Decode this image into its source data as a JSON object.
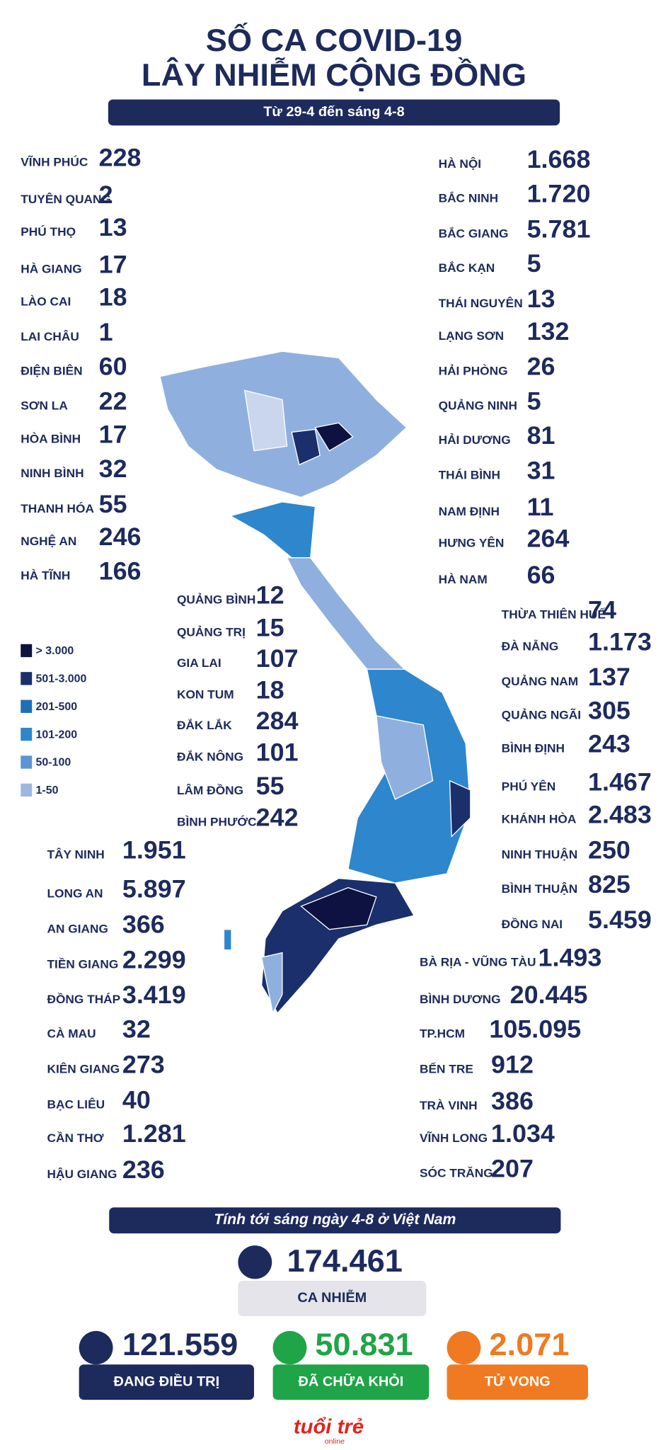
{
  "header": {
    "title_lines": [
      "SỐ CA COVID-19",
      "LÂY NHIỄM CỘNG ĐỒNG"
    ],
    "subtitle": "Từ 29-4 đến sáng 4-8"
  },
  "groups": [
    {
      "items": [
        {
          "name": "VĨNH PHÚC",
          "value": "228"
        },
        {
          "name": "TUYÊN QUANG",
          "value": "2"
        },
        {
          "name": "PHÚ THỌ",
          "value": "13"
        },
        {
          "name": "HÀ GIANG",
          "value": "17"
        },
        {
          "name": "LÀO CAI",
          "value": "18"
        },
        {
          "name": "LAI CHÂU",
          "value": "1"
        },
        {
          "name": "ĐIỆN BIÊN",
          "value": "60"
        },
        {
          "name": "SƠN LA",
          "value": "22"
        },
        {
          "name": "HÒA BÌNH",
          "value": "17"
        },
        {
          "name": "NINH BÌNH",
          "value": "32"
        },
        {
          "name": "THANH HÓA",
          "value": "55"
        },
        {
          "name": "NGHỆ AN",
          "value": "246"
        },
        {
          "name": "HÀ TĨNH",
          "value": "166"
        }
      ]
    },
    {
      "items": [
        {
          "name": "HÀ NỘI",
          "value": "1.668"
        },
        {
          "name": "BẮC NINH",
          "value": "1.720"
        },
        {
          "name": "BẮC GIANG",
          "value": "5.781"
        },
        {
          "name": "BẮC KẠN",
          "value": "5"
        },
        {
          "name": "THÁI NGUYÊN",
          "value": "13"
        },
        {
          "name": "LẠNG SƠN",
          "value": "132"
        },
        {
          "name": "HẢI PHÒNG",
          "value": "26"
        },
        {
          "name": "QUẢNG NINH",
          "value": "5"
        },
        {
          "name": "HẢI DƯƠNG",
          "value": "81"
        },
        {
          "name": "THÁI BÌNH",
          "value": "31"
        },
        {
          "name": "NAM ĐỊNH",
          "value": "11"
        },
        {
          "name": "HƯNG YÊN",
          "value": "264"
        },
        {
          "name": "HÀ NAM",
          "value": "66"
        }
      ]
    },
    {
      "items": [
        {
          "name": "QUẢNG BÌNH",
          "value": "12"
        },
        {
          "name": "QUẢNG TRỊ",
          "value": "15"
        },
        {
          "name": "GIA LAI",
          "value": "107"
        },
        {
          "name": "KON TUM",
          "value": "18"
        },
        {
          "name": "ĐẮK LẮK",
          "value": "284"
        },
        {
          "name": "ĐẮK NÔNG",
          "value": "101"
        },
        {
          "name": "LÂM ĐỒNG",
          "value": "55"
        },
        {
          "name": "BÌNH PHƯỚC",
          "value": "242"
        }
      ]
    },
    {
      "items": [
        {
          "name": "THỪA THIÊN HUẾ",
          "value": "74"
        },
        {
          "name": "ĐÀ NẴNG",
          "value": "1.173"
        },
        {
          "name": "QUẢNG NAM",
          "value": "137"
        },
        {
          "name": "QUẢNG NGÃI",
          "value": "305"
        },
        {
          "name": "BÌNH ĐỊNH",
          "value": "243"
        },
        {
          "name": "PHÚ YÊN",
          "value": "1.467"
        },
        {
          "name": "KHÁNH HÒA",
          "value": "2.483"
        },
        {
          "name": "NINH THUẬN",
          "value": "250"
        },
        {
          "name": "BÌNH THUẬN",
          "value": "825"
        },
        {
          "name": "ĐỒNG NAI",
          "value": "5.459"
        }
      ]
    },
    {
      "items": [
        {
          "name": "TÂY NINH",
          "value": "1.951"
        },
        {
          "name": "LONG AN",
          "value": "5.897"
        },
        {
          "name": "AN GIANG",
          "value": "366"
        },
        {
          "name": "TIỀN GIANG",
          "value": "2.299"
        },
        {
          "name": "ĐỒNG THÁP",
          "value": "3.419"
        },
        {
          "name": "CÀ MAU",
          "value": "32"
        },
        {
          "name": "KIÊN GIANG",
          "value": "273"
        },
        {
          "name": "BẠC LIÊU",
          "value": "40"
        },
        {
          "name": "CẦN THƠ",
          "value": "1.281"
        },
        {
          "name": "HẬU GIANG",
          "value": "236"
        }
      ]
    },
    {
      "items": [
        {
          "name": "BÀ RỊA - VŨNG TÀU",
          "value": "1.493"
        },
        {
          "name": "BÌNH DƯƠNG",
          "value": "20.445"
        },
        {
          "name": "TP.HCM",
          "value": "105.095"
        },
        {
          "name": "BẾN TRE",
          "value": "912"
        },
        {
          "name": "TRÀ VINH",
          "value": "386"
        },
        {
          "name": "VĨNH LONG",
          "value": "1.034"
        },
        {
          "name": "SÓC TRĂNG",
          "value": "207"
        }
      ]
    }
  ],
  "legend": [
    {
      "label": "> 3.000",
      "color": "#0d1240"
    },
    {
      "label": "501-3.000",
      "color": "#1a2f6b"
    },
    {
      "label": "201-500",
      "color": "#1f6fb8"
    },
    {
      "label": "101-200",
      "color": "#2e86cc"
    },
    {
      "label": "50-100",
      "color": "#5b95d6"
    },
    {
      "label": "1-50",
      "color": "#9fb7e0"
    }
  ],
  "summary": {
    "banner": "Tính tới sáng ngày 4-8 ở Việt Nam",
    "cases": {
      "value": "174.461",
      "label": "CA NHIỄM"
    },
    "treating": {
      "value": "121.559",
      "label": "ĐANG ĐIỀU TRỊ"
    },
    "recovered": {
      "value": "50.831",
      "label": "ĐÃ CHỮA KHỎI"
    },
    "deaths": {
      "value": "2.071",
      "label": "TỬ VONG"
    }
  },
  "logo": {
    "main": "tuổi trẻ",
    "sub": "online"
  }
}
